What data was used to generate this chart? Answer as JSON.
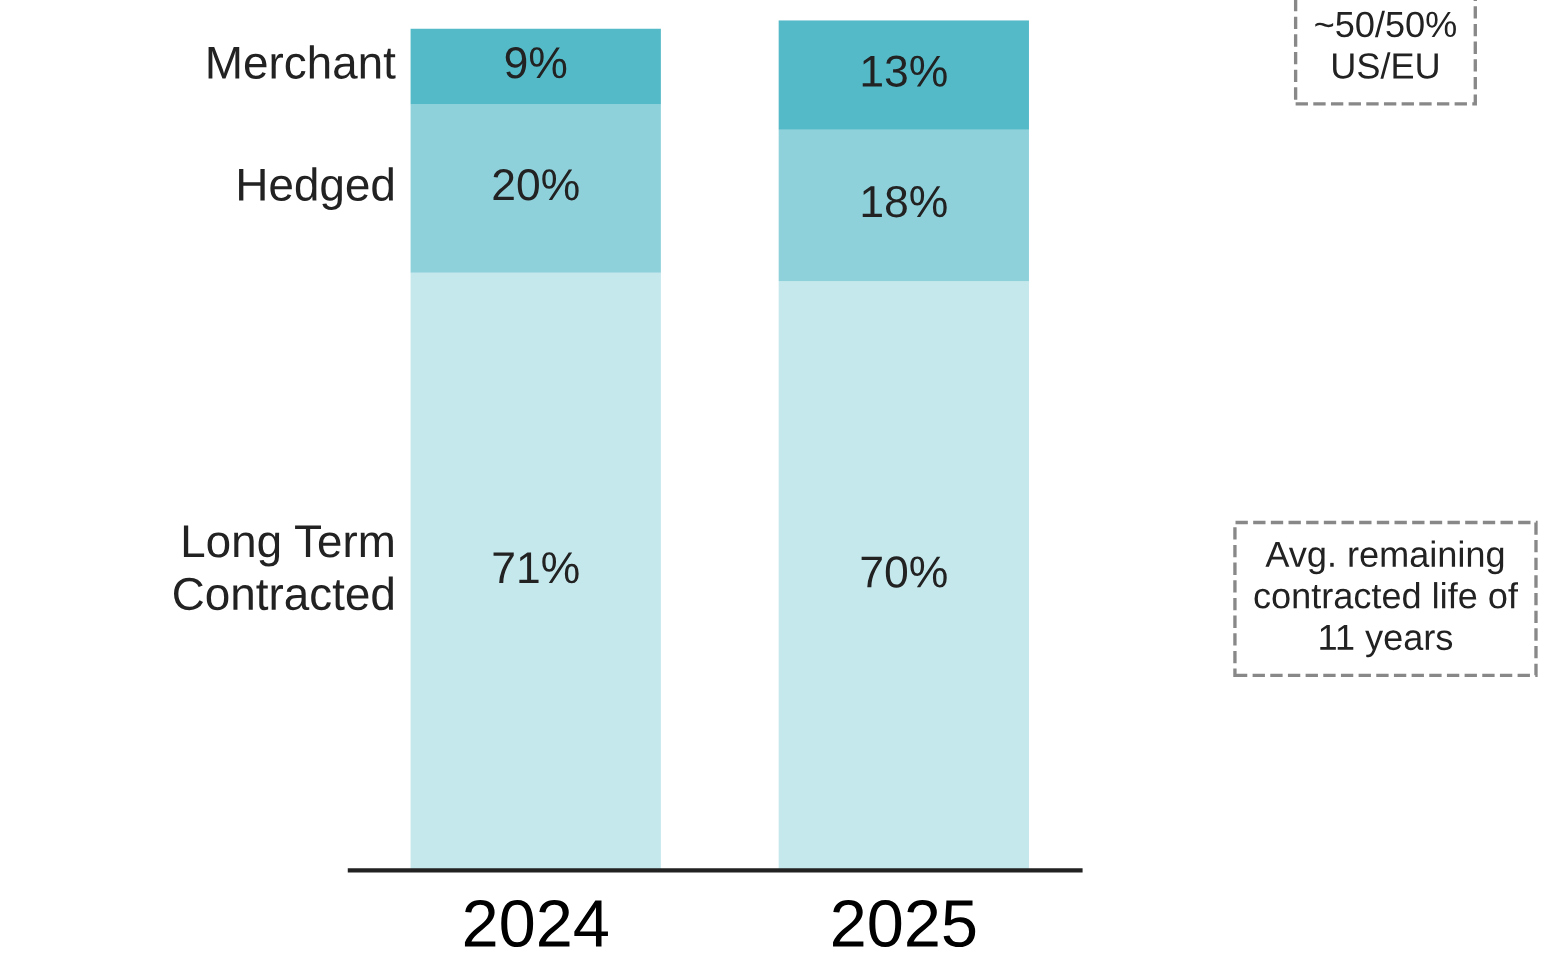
{
  "chart_data": {
    "type": "bar",
    "stacked": true,
    "categories": [
      "2024",
      "2025"
    ],
    "series": [
      {
        "name": "Long Term\nContracted",
        "color": "#c5e8ed",
        "values": [
          71,
          70
        ],
        "value_labels": [
          "71%",
          "70%"
        ]
      },
      {
        "name": "Hedged",
        "color": "#8fd1db",
        "values": [
          20,
          18
        ],
        "value_labels": [
          "20%",
          "18%"
        ]
      },
      {
        "name": "Merchant",
        "color": "#55bac8",
        "values": [
          9,
          13
        ],
        "value_labels": [
          "9%",
          "13%"
        ]
      }
    ],
    "annotations": [
      "~50/50%\nUS/EU",
      "Avg. remaining\ncontracted life of\n11 years"
    ],
    "legend": false,
    "grid": false
  }
}
